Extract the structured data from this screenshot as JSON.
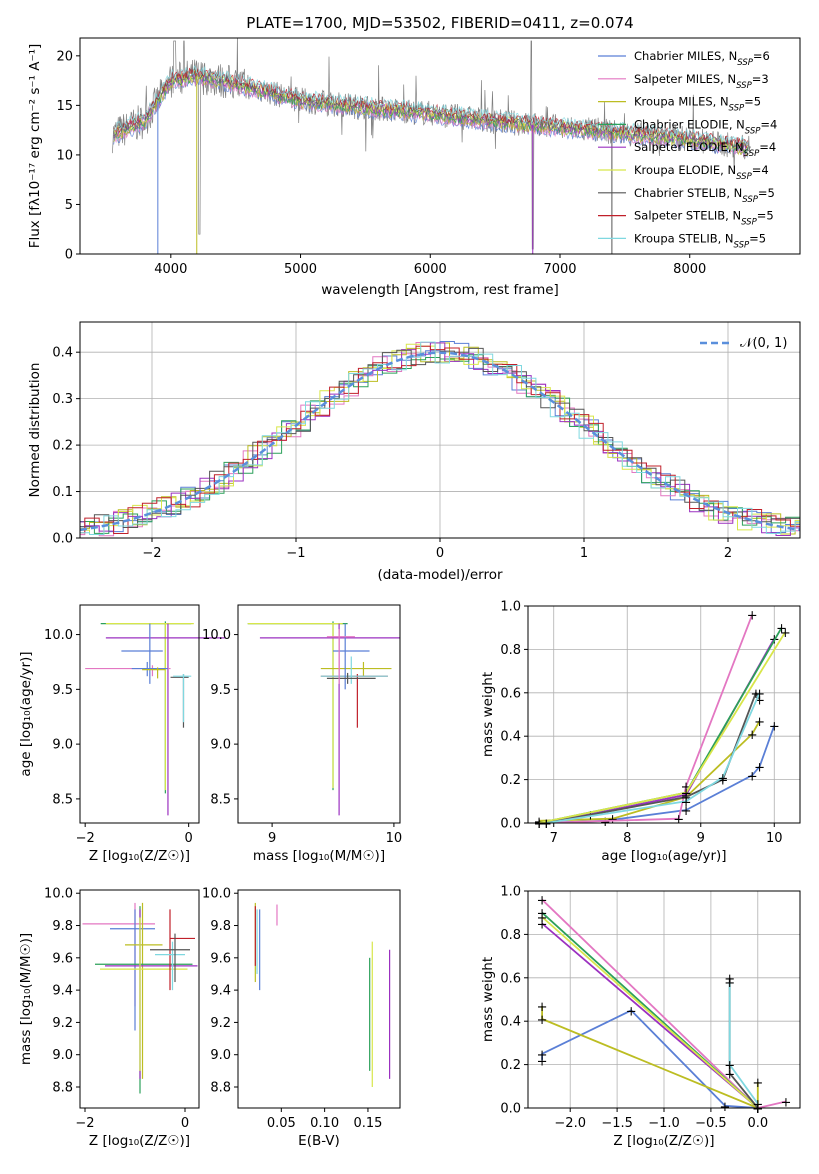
{
  "chart_data": [
    {
      "type": "line",
      "title": "PLATE=1700, MJD=53502, FIBERID=0411, z=0.074",
      "xlabel": "wavelength [Angstrom, rest frame]",
      "ylabel": "Flux [fλ10⁻¹⁷ erg cm⁻² s⁻¹ A⁻¹]",
      "xlim": [
        3300,
        8850
      ],
      "ylim": [
        0,
        21.8
      ],
      "xticks": [
        "4000",
        "5000",
        "6000",
        "7000",
        "8000"
      ],
      "yticks": [
        "0",
        "5",
        "10",
        "15",
        "20"
      ],
      "legend_position": "top-right",
      "series": [
        {
          "name": "Chabrier MILES, N_SSP=6",
          "color": "#5a7fd6"
        },
        {
          "name": "Salpeter MILES, N_SSP=3",
          "color": "#e377c2"
        },
        {
          "name": "Kroupa MILES, N_SSP=5",
          "color": "#bcbd22"
        },
        {
          "name": "Chabrier ELODIE, N_SSP=4",
          "color": "#2ca05a"
        },
        {
          "name": "Salpeter ELODIE, N_SSP=4",
          "color": "#9b30c0"
        },
        {
          "name": "Kroupa ELODIE, N_SSP=4",
          "color": "#d8e64a"
        },
        {
          "name": "Chabrier STELIB, N_SSP=5",
          "color": "#555555"
        },
        {
          "name": "Salpeter STELIB, N_SSP=5",
          "color": "#c0202a"
        },
        {
          "name": "Kroupa STELIB, N_SSP=5",
          "color": "#7fd8e0"
        }
      ],
      "data_color": "#808080",
      "spectrum_continuum": [
        [
          3550,
          12.0
        ],
        [
          3800,
          13.5
        ],
        [
          4000,
          17.5
        ],
        [
          4200,
          18.0
        ],
        [
          4500,
          17.2
        ],
        [
          5000,
          15.5
        ],
        [
          5500,
          14.8
        ],
        [
          6000,
          14.2
        ],
        [
          6500,
          13.4
        ],
        [
          7000,
          12.8
        ],
        [
          7500,
          12.2
        ],
        [
          8000,
          11.6
        ],
        [
          8500,
          10.6
        ]
      ],
      "grid": false
    },
    {
      "type": "bar",
      "xlabel": "(data-model)/error",
      "ylabel": "Normed distribution",
      "xlim": [
        -2.5,
        2.5
      ],
      "ylim": [
        0,
        0.465
      ],
      "xticks": [
        "−2",
        "−1",
        "0",
        "1",
        "2"
      ],
      "yticks": [
        "0.0",
        "0.1",
        "0.2",
        "0.3",
        "0.4"
      ],
      "legend": "𝒩(0, 1)",
      "legend_position": "top-right",
      "grid": true,
      "note": "step histograms of 9 fits plus dashed Gaussian N(0,1)"
    },
    {
      "type": "scatter",
      "xlabel": "Z [log₁₀(Z/Z☉)]",
      "ylabel": "age  [log₁₀(age/yr)]",
      "xlim": [
        -2.1,
        0.2
      ],
      "ylim": [
        8.28,
        10.27
      ],
      "xticks": [
        "−2",
        "0"
      ],
      "yticks": [
        "8.5",
        "9.0",
        "9.5",
        "10.0"
      ]
    },
    {
      "type": "scatter",
      "xlabel": "mass [log₁₀(M/M☉)]",
      "xlim": [
        8.72,
        10.05
      ],
      "ylim": [
        8.28,
        10.27
      ],
      "xticks": [
        "9",
        "10"
      ],
      "yticks": [
        "8.5",
        "9.0",
        "9.5",
        "10.0"
      ]
    },
    {
      "type": "line",
      "xlabel": "age  [log₁₀(age/yr)]",
      "ylabel": "mass weight",
      "xlim": [
        6.65,
        10.35
      ],
      "ylim": [
        0,
        1.0
      ],
      "xticks": [
        "7",
        "8",
        "9",
        "10"
      ],
      "yticks": [
        "0.0",
        "0.2",
        "0.4",
        "0.6",
        "0.8",
        "1.0"
      ],
      "grid": true
    },
    {
      "type": "scatter",
      "xlabel": "Z [log₁₀(Z/Z☉)]",
      "ylabel": "mass [log₁₀(M/M☉)]",
      "xlim": [
        -2.1,
        0.28
      ],
      "ylim": [
        8.67,
        10.02
      ],
      "xticks": [
        "−2",
        "0"
      ],
      "yticks": [
        "8.8",
        "9.0",
        "9.2",
        "9.4",
        "9.6",
        "9.8",
        "10.0"
      ]
    },
    {
      "type": "scatter",
      "xlabel": "E(B-V)",
      "xlim": [
        0.0,
        0.187
      ],
      "ylim": [
        8.67,
        10.02
      ],
      "xticks": [
        "0.05",
        "0.10",
        "0.15"
      ],
      "yticks": [
        "8.8",
        "9.0",
        "9.2",
        "9.4",
        "9.6",
        "9.8",
        "10.0"
      ]
    },
    {
      "type": "line",
      "xlabel": "Z [log₁₀(Z/Z☉)]",
      "ylabel": "mass weight",
      "xlim": [
        -2.45,
        0.45
      ],
      "ylim": [
        0,
        1.0
      ],
      "xticks": [
        "−2.0",
        "−1.5",
        "−1.0",
        "−0.5",
        "0.0"
      ],
      "yticks": [
        "0.0",
        "0.2",
        "0.4",
        "0.6",
        "0.8",
        "1.0"
      ],
      "grid": true
    }
  ]
}
